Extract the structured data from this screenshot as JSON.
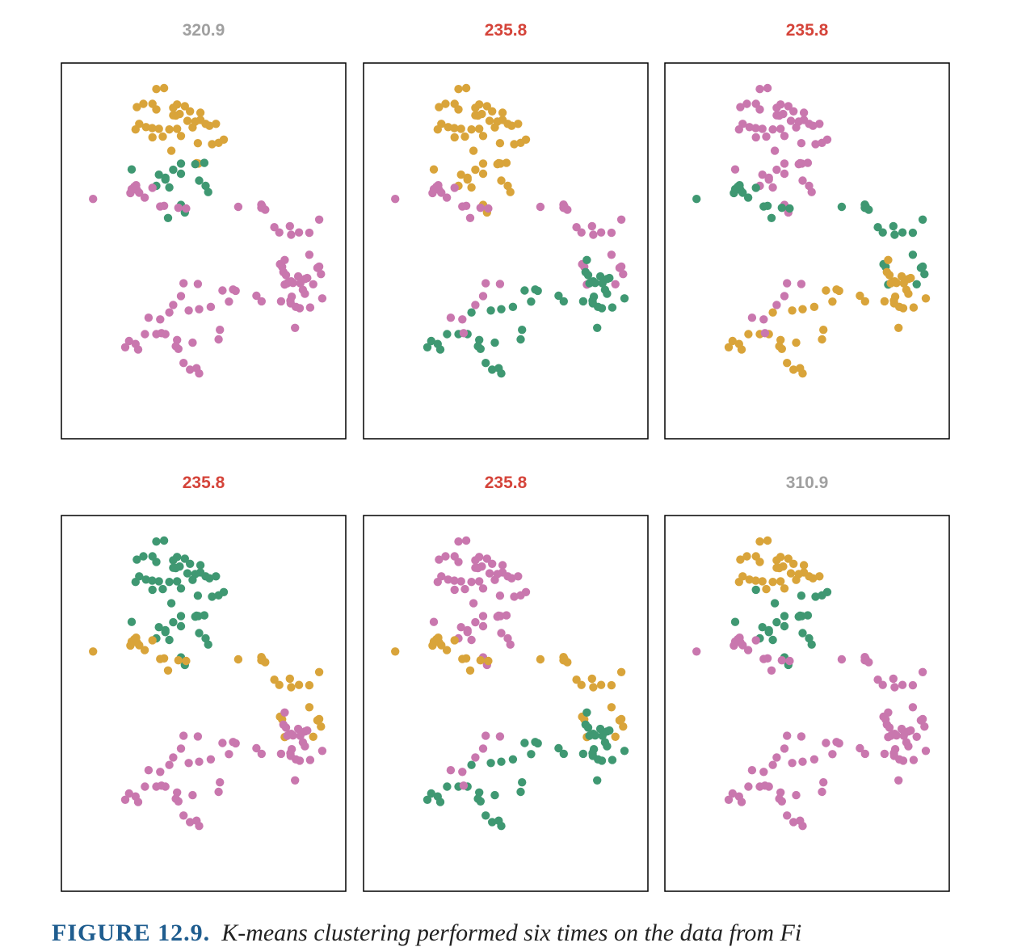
{
  "colors": {
    "gold": "#D9A43A",
    "green": "#3F9872",
    "pink": "#C977AE",
    "title_best": "#D5443A",
    "title_other": "#A0A0A0"
  },
  "caption": {
    "label": "FIGURE 12.9.",
    "text": "K-means clustering performed six times on the data from Fi"
  },
  "chart_data": [
    {
      "type": "scatter",
      "title": "320.9",
      "title_color": "#A0A0A0",
      "xlim": [
        0,
        100
      ],
      "ylim": [
        0,
        100
      ],
      "colors": [
        "gold",
        "gold",
        "gold",
        "gold",
        "gold",
        "gold",
        "gold",
        "gold",
        "gold",
        "gold",
        "gold",
        "gold",
        "gold",
        "gold",
        "gold",
        "gold",
        "gold",
        "gold",
        "gold",
        "gold",
        "gold",
        "gold",
        "gold",
        "gold",
        "gold",
        "gold",
        "gold",
        "gold",
        "gold",
        "gold",
        "gold",
        "gold",
        "gold",
        "gold",
        "gold",
        "gold",
        "gold",
        "gold",
        "green",
        "green",
        "green",
        "green",
        "green",
        "green",
        "green",
        "green",
        "green",
        "green",
        "green",
        "green",
        "green",
        "green",
        "green",
        "green",
        "green",
        "pink",
        "pink",
        "pink",
        "pink",
        "pink",
        "pink",
        "pink",
        "pink",
        "pink",
        "pink",
        "pink",
        "pink",
        "pink",
        "pink",
        "pink",
        "pink",
        "pink",
        "pink",
        "pink",
        "pink",
        "pink",
        "pink",
        "pink",
        "pink",
        "pink",
        "pink",
        "pink",
        "pink",
        "pink",
        "pink",
        "pink",
        "pink",
        "pink",
        "pink",
        "pink",
        "pink",
        "pink",
        "pink",
        "pink",
        "pink",
        "pink",
        "pink",
        "pink",
        "pink",
        "pink",
        "pink",
        "pink",
        "pink",
        "pink",
        "pink",
        "pink",
        "pink",
        "pink",
        "pink",
        "pink",
        "pink",
        "pink",
        "pink",
        "pink",
        "pink",
        "pink",
        "pink",
        "pink",
        "pink",
        "pink",
        "pink",
        "pink",
        "pink",
        "pink",
        "pink",
        "pink",
        "pink"
      ]
    },
    {
      "type": "scatter",
      "title": "235.8",
      "title_color": "#D5443A",
      "xlim": [
        0,
        100
      ],
      "ylim": [
        0,
        100
      ],
      "colors": [
        "gold",
        "gold",
        "gold",
        "gold",
        "gold",
        "gold",
        "gold",
        "gold",
        "gold",
        "gold",
        "gold",
        "gold",
        "gold",
        "gold",
        "gold",
        "gold",
        "gold",
        "gold",
        "gold",
        "gold",
        "gold",
        "gold",
        "gold",
        "gold",
        "gold",
        "gold",
        "gold",
        "gold",
        "gold",
        "gold",
        "gold",
        "gold",
        "gold",
        "gold",
        "gold",
        "gold",
        "gold",
        "gold",
        "gold",
        "gold",
        "gold",
        "gold",
        "gold",
        "gold",
        "gold",
        "gold",
        "gold",
        "gold",
        "gold",
        "gold",
        "gold",
        "gold",
        "gold",
        "gold",
        "pink",
        "pink",
        "pink",
        "pink",
        "pink",
        "pink",
        "pink",
        "pink",
        "pink",
        "pink",
        "pink",
        "pink",
        "pink",
        "pink",
        "pink",
        "pink",
        "pink",
        "pink",
        "pink",
        "pink",
        "pink",
        "pink",
        "pink",
        "pink",
        "pink",
        "pink",
        "pink",
        "pink",
        "pink",
        "pink",
        "pink",
        "pink",
        "pink",
        "pink",
        "pink",
        "pink",
        "green",
        "green",
        "green",
        "green",
        "green",
        "green",
        "green",
        "green",
        "green",
        "green",
        "green",
        "green",
        "green",
        "green",
        "green",
        "green",
        "green",
        "green",
        "green",
        "green",
        "green",
        "green",
        "green",
        "green",
        "green",
        "green",
        "green",
        "green",
        "green",
        "green",
        "green",
        "green",
        "green",
        "green",
        "green",
        "green",
        "green",
        "green",
        "green",
        "green",
        "green",
        "green",
        "green",
        "green",
        "green",
        "green",
        "green",
        "green"
      ]
    },
    {
      "type": "scatter",
      "title": "235.8",
      "title_color": "#D5443A",
      "xlim": [
        0,
        100
      ],
      "ylim": [
        0,
        100
      ],
      "colors": [
        "pink",
        "pink",
        "pink",
        "pink",
        "pink",
        "pink",
        "pink",
        "pink",
        "pink",
        "pink",
        "pink",
        "pink",
        "pink",
        "pink",
        "pink",
        "pink",
        "pink",
        "pink",
        "pink",
        "pink",
        "pink",
        "pink",
        "pink",
        "pink",
        "pink",
        "pink",
        "pink",
        "pink",
        "pink",
        "pink",
        "pink",
        "pink",
        "pink",
        "pink",
        "pink",
        "pink",
        "pink",
        "pink",
        "pink",
        "pink",
        "pink",
        "pink",
        "pink",
        "pink",
        "pink",
        "pink",
        "pink",
        "pink",
        "pink",
        "pink",
        "pink",
        "pink",
        "pink",
        "pink",
        "green",
        "green",
        "green",
        "green",
        "green",
        "green",
        "green",
        "green",
        "green",
        "green",
        "green",
        "green",
        "green",
        "green",
        "green",
        "green",
        "green",
        "green",
        "green",
        "green",
        "green",
        "green",
        "green",
        "green",
        "green",
        "green",
        "green",
        "green",
        "green",
        "green",
        "green",
        "green",
        "green",
        "green",
        "green",
        "green",
        "gold",
        "gold",
        "gold",
        "gold",
        "gold",
        "gold",
        "gold",
        "gold",
        "gold",
        "gold",
        "gold",
        "gold",
        "gold",
        "gold",
        "gold",
        "gold",
        "gold",
        "gold",
        "gold",
        "gold",
        "gold",
        "gold",
        "gold",
        "gold",
        "gold",
        "gold",
        "gold",
        "gold",
        "gold",
        "gold",
        "gold",
        "gold",
        "gold",
        "gold",
        "gold",
        "gold",
        "gold",
        "gold",
        "gold",
        "gold",
        "gold",
        "gold",
        "gold",
        "gold",
        "gold",
        "gold",
        "gold",
        "gold"
      ]
    },
    {
      "type": "scatter",
      "title": "235.8",
      "title_color": "#D5443A",
      "xlim": [
        0,
        100
      ],
      "ylim": [
        0,
        100
      ],
      "colors": [
        "green",
        "green",
        "green",
        "green",
        "green",
        "green",
        "green",
        "green",
        "green",
        "green",
        "green",
        "green",
        "green",
        "green",
        "green",
        "green",
        "green",
        "green",
        "green",
        "green",
        "green",
        "green",
        "green",
        "green",
        "green",
        "green",
        "green",
        "green",
        "green",
        "green",
        "green",
        "green",
        "green",
        "green",
        "green",
        "green",
        "green",
        "green",
        "green",
        "green",
        "green",
        "green",
        "green",
        "green",
        "green",
        "green",
        "green",
        "green",
        "green",
        "green",
        "green",
        "green",
        "green",
        "green",
        "gold",
        "gold",
        "gold",
        "gold",
        "gold",
        "gold",
        "gold",
        "gold",
        "gold",
        "gold",
        "gold",
        "gold",
        "gold",
        "gold",
        "gold",
        "gold",
        "gold",
        "gold",
        "gold",
        "gold",
        "gold",
        "gold",
        "gold",
        "gold",
        "gold",
        "gold",
        "gold",
        "gold",
        "gold",
        "gold",
        "gold",
        "gold",
        "gold",
        "gold",
        "gold",
        "gold",
        "pink",
        "pink",
        "pink",
        "pink",
        "pink",
        "pink",
        "pink",
        "pink",
        "pink",
        "pink",
        "pink",
        "pink",
        "pink",
        "pink",
        "pink",
        "pink",
        "pink",
        "pink",
        "pink",
        "pink",
        "pink",
        "pink",
        "pink",
        "pink",
        "pink",
        "pink",
        "pink",
        "pink",
        "pink",
        "pink",
        "pink",
        "pink",
        "pink",
        "pink",
        "pink",
        "pink",
        "pink",
        "pink",
        "pink",
        "pink",
        "pink",
        "pink",
        "pink",
        "pink",
        "pink",
        "pink",
        "pink",
        "pink"
      ]
    },
    {
      "type": "scatter",
      "title": "235.8",
      "title_color": "#D5443A",
      "xlim": [
        0,
        100
      ],
      "ylim": [
        0,
        100
      ],
      "colors": [
        "pink",
        "pink",
        "pink",
        "pink",
        "pink",
        "pink",
        "pink",
        "pink",
        "pink",
        "pink",
        "pink",
        "pink",
        "pink",
        "pink",
        "pink",
        "pink",
        "pink",
        "pink",
        "pink",
        "pink",
        "pink",
        "pink",
        "pink",
        "pink",
        "pink",
        "pink",
        "pink",
        "pink",
        "pink",
        "pink",
        "pink",
        "pink",
        "pink",
        "pink",
        "pink",
        "pink",
        "pink",
        "pink",
        "pink",
        "pink",
        "pink",
        "pink",
        "pink",
        "pink",
        "pink",
        "pink",
        "pink",
        "pink",
        "pink",
        "pink",
        "pink",
        "pink",
        "pink",
        "pink",
        "gold",
        "gold",
        "gold",
        "gold",
        "gold",
        "gold",
        "gold",
        "gold",
        "gold",
        "gold",
        "gold",
        "gold",
        "gold",
        "gold",
        "gold",
        "gold",
        "gold",
        "gold",
        "gold",
        "gold",
        "gold",
        "gold",
        "gold",
        "gold",
        "gold",
        "gold",
        "gold",
        "gold",
        "gold",
        "gold",
        "gold",
        "gold",
        "gold",
        "gold",
        "gold",
        "gold",
        "green",
        "green",
        "green",
        "green",
        "green",
        "green",
        "green",
        "green",
        "green",
        "green",
        "green",
        "green",
        "green",
        "green",
        "green",
        "green",
        "green",
        "green",
        "green",
        "green",
        "green",
        "green",
        "green",
        "green",
        "green",
        "green",
        "green",
        "green",
        "green",
        "green",
        "green",
        "green",
        "green",
        "green",
        "green",
        "green",
        "green",
        "green",
        "green",
        "green",
        "green",
        "green",
        "green",
        "green",
        "green",
        "green",
        "green",
        "green"
      ]
    },
    {
      "type": "scatter",
      "title": "310.9",
      "title_color": "#A0A0A0",
      "xlim": [
        0,
        100
      ],
      "ylim": [
        0,
        100
      ],
      "colors": [
        "gold",
        "gold",
        "gold",
        "gold",
        "gold",
        "gold",
        "gold",
        "gold",
        "gold",
        "gold",
        "gold",
        "gold",
        "gold",
        "gold",
        "gold",
        "gold",
        "gold",
        "gold",
        "gold",
        "gold",
        "gold",
        "gold",
        "gold",
        "gold",
        "gold",
        "gold",
        "gold",
        "gold",
        "gold",
        "gold",
        "green",
        "green",
        "green",
        "green",
        "green",
        "green",
        "green",
        "green",
        "green",
        "green",
        "green",
        "green",
        "green",
        "green",
        "green",
        "green",
        "green",
        "green",
        "green",
        "green",
        "green",
        "green",
        "green",
        "green",
        "pink",
        "pink",
        "pink",
        "pink",
        "pink",
        "pink",
        "pink",
        "pink",
        "pink",
        "pink",
        "pink",
        "pink",
        "pink",
        "pink",
        "pink",
        "pink",
        "pink",
        "pink",
        "pink",
        "pink",
        "pink",
        "pink",
        "pink",
        "pink",
        "pink",
        "pink",
        "pink",
        "pink",
        "pink",
        "pink",
        "pink",
        "pink",
        "pink",
        "pink",
        "pink",
        "pink",
        "pink",
        "pink",
        "pink",
        "pink",
        "pink",
        "pink",
        "pink",
        "pink",
        "pink",
        "pink",
        "pink",
        "pink",
        "pink",
        "pink",
        "pink",
        "pink",
        "pink",
        "pink",
        "pink",
        "pink",
        "pink",
        "pink",
        "pink",
        "pink",
        "pink",
        "pink",
        "pink",
        "pink",
        "pink",
        "pink",
        "pink",
        "pink",
        "pink",
        "pink",
        "pink",
        "pink",
        "pink",
        "pink",
        "pink",
        "pink",
        "pink",
        "pink",
        "pink",
        "pink",
        "pink",
        "pink",
        "pink",
        "pink"
      ]
    }
  ]
}
